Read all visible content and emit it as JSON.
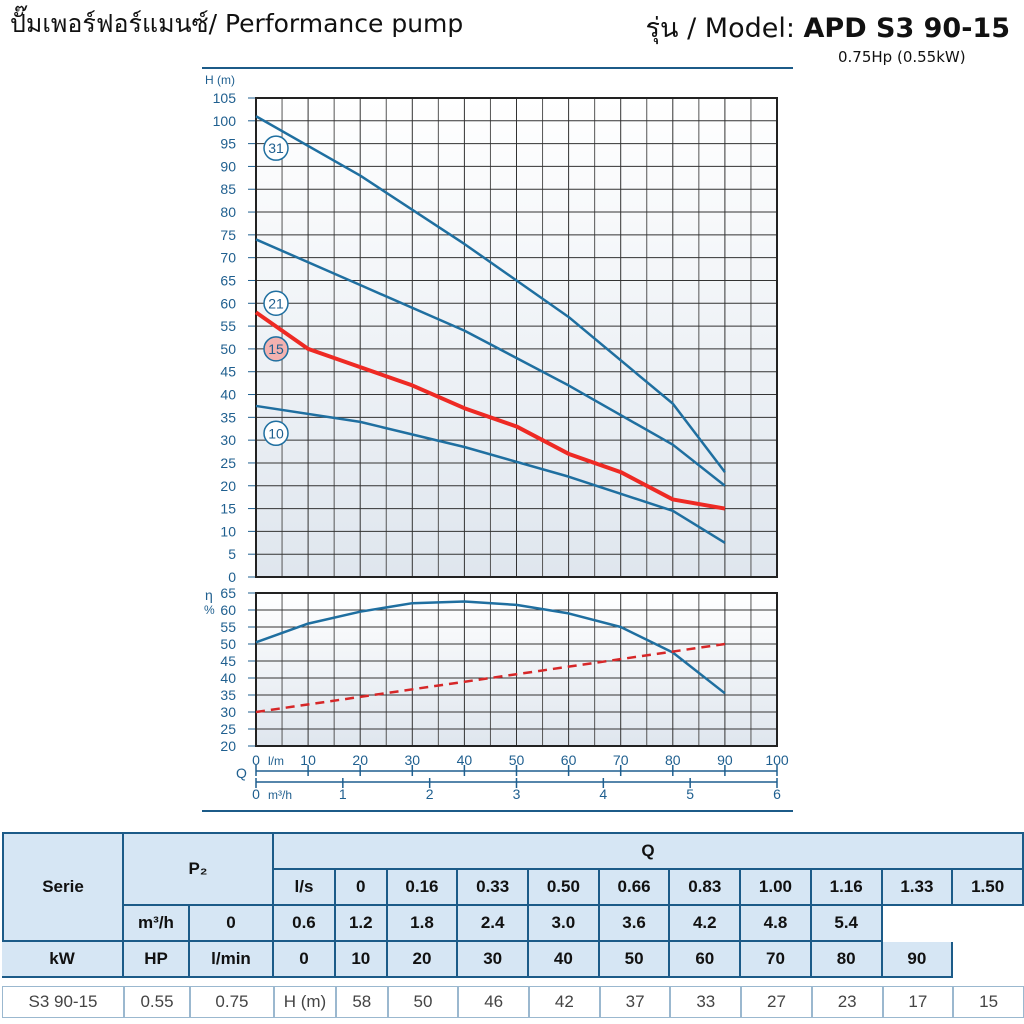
{
  "header": {
    "title_left": "ปั๊มเพอร์ฟอร์แมนซ์/ Performance pump",
    "title_right_prefix": "รุ่น / Model: ",
    "model": "APD S3 90-15",
    "power": "0.75Hp (0.55kW)"
  },
  "chart_data": [
    {
      "type": "line",
      "ylabel": "H (m)",
      "ylim": [
        0,
        105
      ],
      "y_ticks": [
        0,
        5,
        10,
        15,
        20,
        25,
        30,
        35,
        40,
        45,
        50,
        55,
        60,
        65,
        70,
        75,
        80,
        85,
        90,
        95,
        100,
        105
      ],
      "x_unit": "l/min",
      "xlim": [
        0,
        100
      ],
      "grid": true,
      "series": [
        {
          "name": "31",
          "color": "#1f6fa0",
          "x": [
            0,
            90
          ],
          "y": [
            101,
            23
          ],
          "curve": [
            [
              0,
              101
            ],
            [
              20,
              88
            ],
            [
              40,
              73
            ],
            [
              60,
              57
            ],
            [
              80,
              38
            ],
            [
              90,
              23
            ]
          ]
        },
        {
          "name": "21",
          "color": "#1f6fa0",
          "x": [
            0,
            90
          ],
          "y": [
            74,
            20
          ],
          "curve": [
            [
              0,
              74
            ],
            [
              20,
              64
            ],
            [
              40,
              54
            ],
            [
              60,
              42
            ],
            [
              80,
              29
            ],
            [
              90,
              20
            ]
          ]
        },
        {
          "name": "15",
          "color": "#ee2a24",
          "highlight": true,
          "curve": [
            [
              0,
              58
            ],
            [
              10,
              50
            ],
            [
              20,
              46
            ],
            [
              30,
              42
            ],
            [
              40,
              37
            ],
            [
              50,
              33
            ],
            [
              60,
              27
            ],
            [
              70,
              23
            ],
            [
              80,
              17
            ],
            [
              90,
              15
            ]
          ]
        },
        {
          "name": "10",
          "color": "#1f6fa0",
          "curve": [
            [
              0,
              37.5
            ],
            [
              20,
              34
            ],
            [
              40,
              28.5
            ],
            [
              60,
              22
            ],
            [
              80,
              14.5
            ],
            [
              90,
              7.5
            ]
          ]
        }
      ]
    },
    {
      "type": "line",
      "ylabel": "η %",
      "ylim": [
        20,
        65
      ],
      "y_ticks": [
        20,
        25,
        30,
        35,
        40,
        45,
        50,
        55,
        60,
        65
      ],
      "xlim": [
        0,
        100
      ],
      "grid": true,
      "series": [
        {
          "name": "efficiency",
          "color": "#1f6fa0",
          "curve": [
            [
              0,
              50.5
            ],
            [
              10,
              56
            ],
            [
              20,
              59.5
            ],
            [
              30,
              62
            ],
            [
              40,
              62.5
            ],
            [
              50,
              61.5
            ],
            [
              60,
              59
            ],
            [
              70,
              55
            ],
            [
              80,
              47.5
            ],
            [
              90,
              35.5
            ]
          ]
        },
        {
          "name": "power",
          "color": "#d62728",
          "dashed": true,
          "curve": [
            [
              0,
              30
            ],
            [
              90,
              50
            ]
          ]
        }
      ]
    }
  ],
  "x_axis": {
    "q_label": "Q",
    "lmin_unit": "l/m",
    "lmin_ticks": [
      "0",
      "10",
      "20",
      "30",
      "40",
      "50",
      "60",
      "70",
      "80",
      "90",
      "100"
    ],
    "m3h_unit": "m³/h",
    "m3h_ticks": [
      "0",
      "1",
      "2",
      "3",
      "4",
      "5",
      "6"
    ]
  },
  "table": {
    "serie_label": "Serie",
    "p2_label": "P₂",
    "q_label": "Q",
    "units": [
      "l/s",
      "m³/h",
      "l/min"
    ],
    "ls": [
      "0",
      "0.16",
      "0.33",
      "0.50",
      "0.66",
      "0.83",
      "1.00",
      "1.16",
      "1.33",
      "1.50"
    ],
    "m3h": [
      "0",
      "0.6",
      "1.2",
      "1.8",
      "2.4",
      "3.0",
      "3.6",
      "4.2",
      "4.8",
      "5.4"
    ],
    "lmin": [
      "0",
      "10",
      "20",
      "30",
      "40",
      "50",
      "60",
      "70",
      "80",
      "90"
    ],
    "kw_label": "kW",
    "hp_label": "HP",
    "row": {
      "serie": "S3 90-15",
      "kw": "0.55",
      "hp": "0.75",
      "unit": "H (m)",
      "values": [
        "58",
        "50",
        "46",
        "42",
        "37",
        "33",
        "27",
        "23",
        "17",
        "15"
      ]
    }
  }
}
